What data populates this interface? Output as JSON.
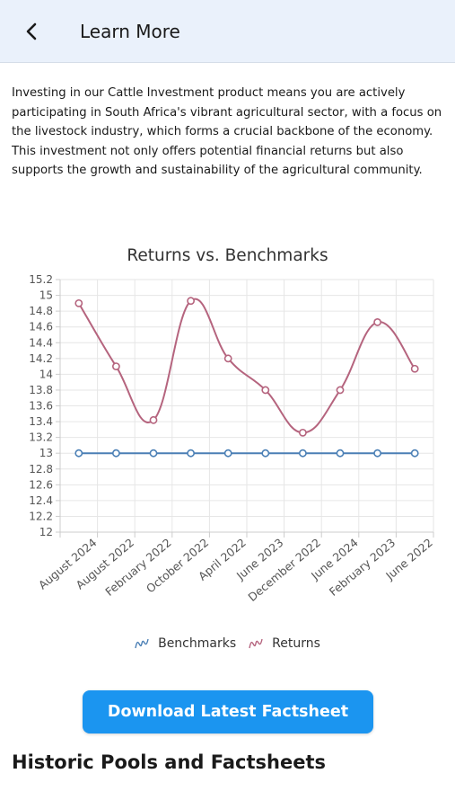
{
  "header": {
    "title": "Learn More",
    "back_icon": "chevron-left-icon"
  },
  "intro": {
    "text": "Investing in our Cattle Investment product means you are actively participating in South Africa's vibrant agricultural sector, with a focus on the livestock industry, which forms a crucial backbone of the economy. This investment not only offers potential financial returns but also supports the growth and sustainability of the agricultural community."
  },
  "chart_data": {
    "type": "line",
    "title": "Returns vs. Benchmarks",
    "xlabel": "",
    "ylabel": "",
    "ylim": [
      12,
      15.2
    ],
    "yticks": [
      "12",
      "12.2",
      "12.4",
      "12.6",
      "12.8",
      "13",
      "13.2",
      "13.4",
      "13.6",
      "13.8",
      "14",
      "14.2",
      "14.4",
      "14.6",
      "14.8",
      "15",
      "15.2"
    ],
    "categories": [
      "August 2024",
      "August 2022",
      "February 2022",
      "October 2022",
      "April 2022",
      "June 2023",
      "December 2022",
      "June 2024",
      "February 2023",
      "June 2022"
    ],
    "grid": true,
    "legend_position": "bottom",
    "series": [
      {
        "name": "Benchmarks",
        "color": "#4a7fb5",
        "values": [
          13,
          13,
          13,
          13,
          13,
          13,
          13,
          13,
          13,
          13
        ]
      },
      {
        "name": "Returns",
        "color": "#b5647e",
        "values": [
          14.9,
          14.1,
          13.42,
          14.93,
          14.2,
          13.8,
          13.26,
          13.8,
          14.66,
          14.07
        ]
      }
    ]
  },
  "actions": {
    "download_label": "Download Latest Factsheet"
  },
  "history": {
    "title": "Historic Pools and Factsheets"
  }
}
